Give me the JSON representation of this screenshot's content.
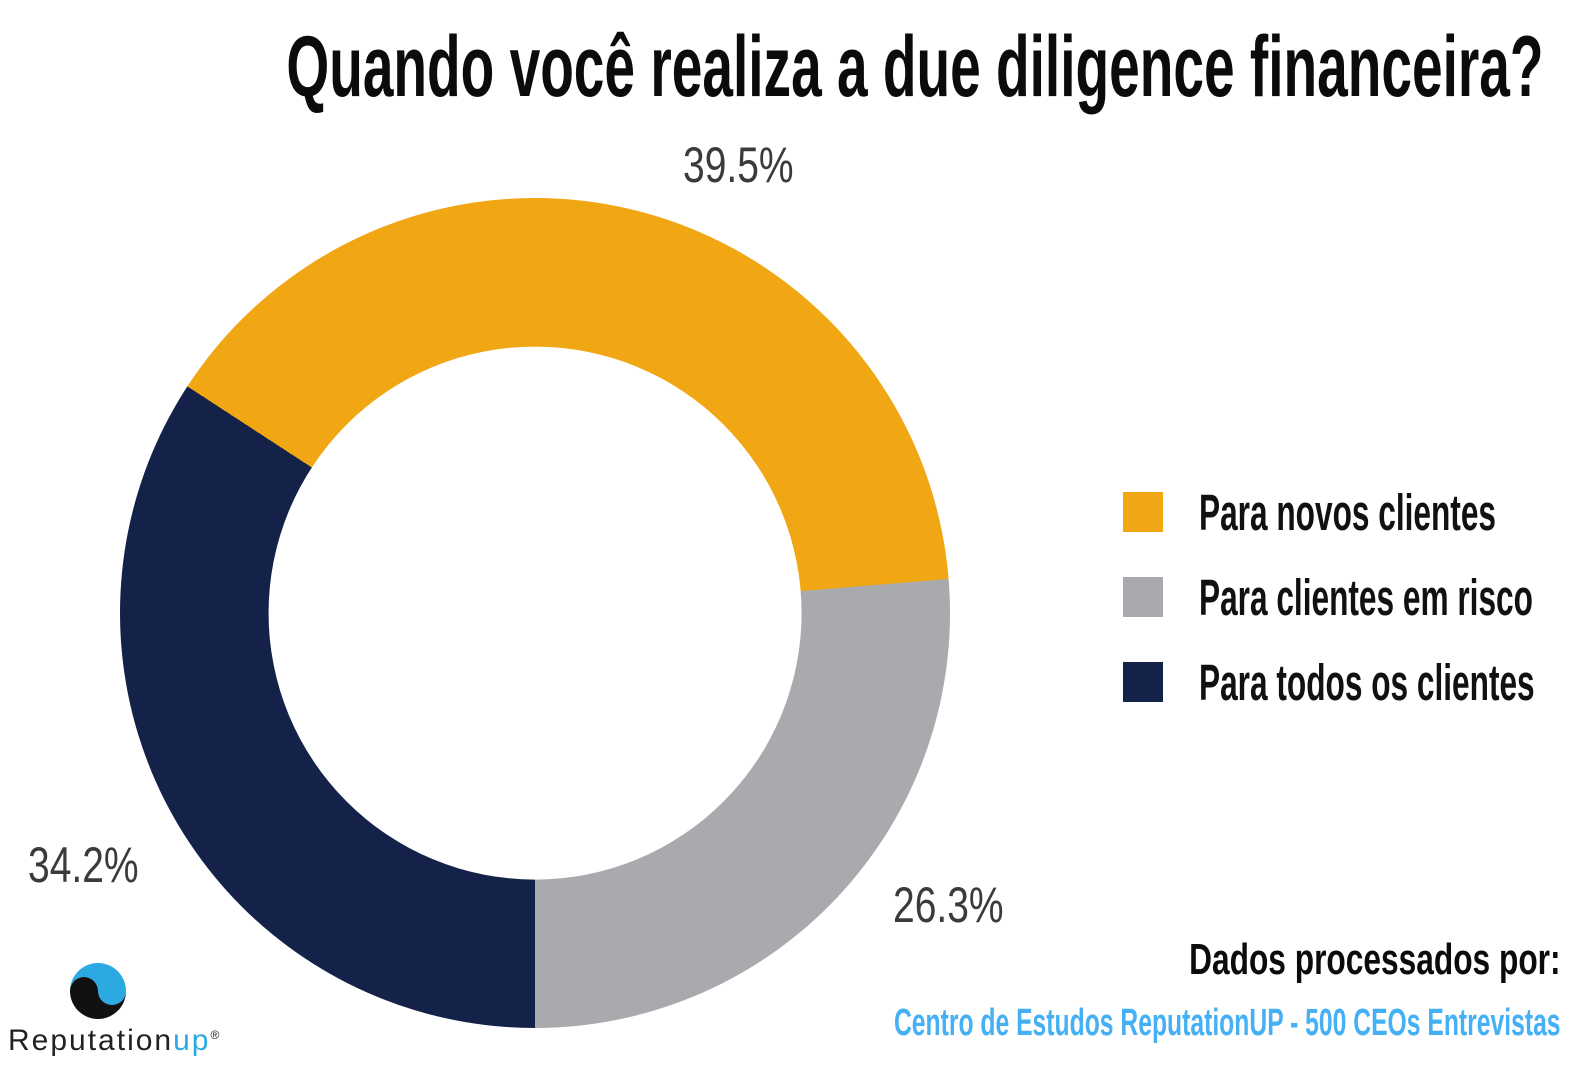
{
  "title": "Quando você realiza a due diligence financeira?",
  "chart_data": {
    "type": "pie",
    "subtype": "donut",
    "labels": [
      "Para novos clientes",
      "Para clientes em risco",
      "Para todos os clientes"
    ],
    "values": [
      39.5,
      26.3,
      34.2
    ],
    "value_labels": [
      "39.5%",
      "26.3%",
      "34.2%"
    ],
    "colors": [
      "#F1A614",
      "#A8AAAD",
      "#14224A"
    ],
    "hole": 0.642,
    "rotation_deg": -56.9,
    "legend_position": "right",
    "title": "Quando você realiza a due diligence financeira?"
  },
  "footer": {
    "processed_by_label": "Dados processados por:",
    "source": "Centro de Estudos ReputationUP - 500 CEOs Entrevistas",
    "source_color": "#45B1F4"
  },
  "logo": {
    "brand": "Reputation",
    "brand_suffix": "up",
    "registered": "®",
    "icon_blue": "#2BA9E0",
    "icon_black": "#111111"
  }
}
